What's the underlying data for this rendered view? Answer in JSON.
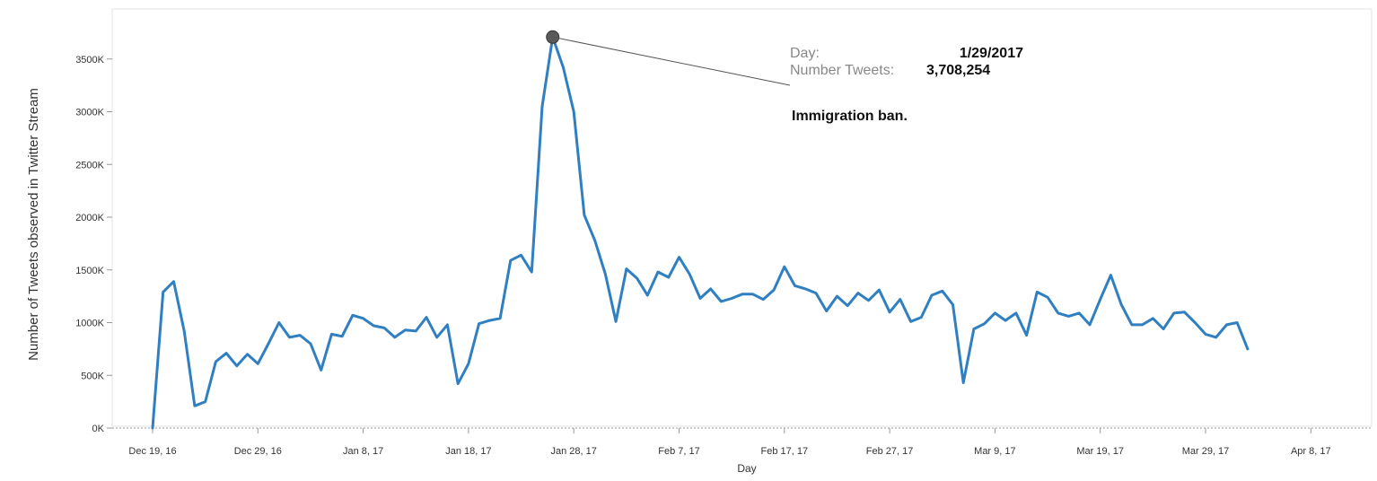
{
  "chart_data": {
    "type": "line",
    "title": "",
    "xlabel": "Day",
    "ylabel": "Number of Tweets observed in Twitter Stream",
    "ylim": [
      0,
      3800000
    ],
    "x_ticks": [
      "Dec 19, 16",
      "Dec 29, 16",
      "Jan 8, 17",
      "Jan 18, 17",
      "Jan 28, 17",
      "Feb 7, 17",
      "Feb 17, 17",
      "Feb 27, 17",
      "Mar 9, 17",
      "Mar 19, 17",
      "Mar 29, 17",
      "Apr 8, 17"
    ],
    "y_ticks": [
      "0K",
      "500K",
      "1000K",
      "1500K",
      "2000K",
      "2500K",
      "3000K",
      "3500K"
    ],
    "y_tick_values": [
      0,
      500000,
      1000000,
      1500000,
      2000000,
      2500000,
      3000000,
      3500000
    ],
    "x_start": "2016-12-19",
    "series": [
      {
        "name": "",
        "color": "#2f7fc1",
        "values": [
          0,
          1290000,
          1390000,
          920000,
          210000,
          250000,
          630000,
          710000,
          590000,
          700000,
          610000,
          800000,
          1000000,
          860000,
          880000,
          800000,
          550000,
          890000,
          870000,
          1070000,
          1040000,
          970000,
          950000,
          860000,
          930000,
          920000,
          1050000,
          860000,
          980000,
          420000,
          610000,
          990000,
          1020000,
          1040000,
          1590000,
          1640000,
          1480000,
          3050000,
          3708254,
          3420000,
          3000000,
          2020000,
          1780000,
          1460000,
          1010000,
          1510000,
          1420000,
          1260000,
          1480000,
          1430000,
          1620000,
          1460000,
          1230000,
          1320000,
          1200000,
          1230000,
          1270000,
          1270000,
          1220000,
          1310000,
          1530000,
          1350000,
          1320000,
          1280000,
          1110000,
          1250000,
          1160000,
          1280000,
          1210000,
          1310000,
          1100000,
          1220000,
          1010000,
          1050000,
          1260000,
          1300000,
          1170000,
          430000,
          940000,
          990000,
          1090000,
          1020000,
          1090000,
          880000,
          1290000,
          1240000,
          1090000,
          1060000,
          1090000,
          980000,
          1220000,
          1450000,
          1170000,
          980000,
          980000,
          1040000,
          940000,
          1090000,
          1100000,
          1000000,
          890000,
          860000,
          980000,
          1000000,
          750000
        ]
      }
    ],
    "tooltip": {
      "day_label": "Day:",
      "day_value": "1/29/2017",
      "tweets_label": "Number Tweets:",
      "tweets_value": "3,708,254",
      "annotation": "Immigration ban.",
      "point_index": 38
    }
  }
}
